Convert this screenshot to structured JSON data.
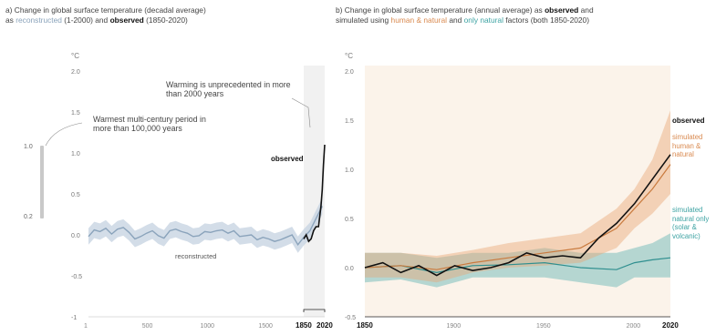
{
  "panel_a": {
    "title_line1": "a) Change in global surface temperature (decadal average)",
    "title_line2_prefix": "as ",
    "title_reconstructed": "reconstructed",
    "title_line2_mid": " (1-2000) and ",
    "title_observed": "observed",
    "title_line2_suffix": " (1850-2020)",
    "annotation_unprecedented": "Warming is unprecedented in more than 2000 years",
    "annotation_warmest": "Warmest multi-century period in more than 100,000 years",
    "label_observed": "observed",
    "label_reconstructed": "reconstructed",
    "side_bar_top": "1.0",
    "side_bar_bottom": "0.2"
  },
  "panel_b": {
    "title_line1_prefix": "b) Change in global surface temperature (annual average) as ",
    "title_observed": "observed",
    "title_line1_suffix": " and",
    "title_line2_prefix": "simulated using ",
    "title_human": "human & natural",
    "title_and": " and ",
    "title_natural": "only natural",
    "title_line2_suffix": " factors (both 1850-2020)",
    "label_observed": "observed",
    "label_human": "simulated human & natural",
    "label_natural": "simulated natural only (solar & volcanic)"
  },
  "colors": {
    "reconstructed": "#8aa3bb",
    "reconstructed_band": "#c8d5e2",
    "observed": "#111111",
    "human_natural": "#e9a878",
    "natural_only": "#5fb3b3"
  },
  "chart_data": [
    {
      "type": "line",
      "ylabel": "°C",
      "ylim": [
        -1,
        2
      ],
      "yticks": [
        "-1",
        "-0.5",
        "0.0",
        "0.5",
        "1.0",
        "1.5",
        "2.0"
      ],
      "xticks": [
        "1",
        "500",
        "1000",
        "1500",
        "1850",
        "2020"
      ],
      "xlim": [
        1,
        2020
      ],
      "grid": false,
      "series": [
        {
          "name": "reconstructed",
          "x": [
            1,
            50,
            100,
            150,
            200,
            250,
            300,
            350,
            400,
            450,
            500,
            550,
            600,
            650,
            700,
            750,
            800,
            850,
            900,
            950,
            1000,
            1050,
            1100,
            1150,
            1200,
            1250,
            1300,
            1350,
            1400,
            1450,
            1500,
            1550,
            1600,
            1650,
            1700,
            1750,
            1800,
            1850,
            1900,
            1950,
            2000
          ],
          "y": [
            -0.02,
            0.06,
            0.04,
            0.08,
            0.01,
            0.07,
            0.09,
            0.03,
            -0.05,
            -0.02,
            0.02,
            0.05,
            -0.01,
            -0.04,
            0.05,
            0.07,
            0.04,
            0.02,
            -0.02,
            -0.01,
            0.04,
            0.03,
            0.05,
            0.06,
            0.02,
            0.05,
            -0.02,
            -0.01,
            0.0,
            -0.06,
            -0.03,
            -0.05,
            -0.08,
            -0.06,
            -0.03,
            0.0,
            -0.12,
            -0.03,
            0.05,
            0.2,
            0.35
          ]
        },
        {
          "name": "observed",
          "x": [
            1850,
            1870,
            1890,
            1910,
            1930,
            1950,
            1970,
            1990,
            2000,
            2010,
            2020
          ],
          "y": [
            -0.05,
            0.0,
            -0.08,
            -0.05,
            0.05,
            0.1,
            0.1,
            0.35,
            0.55,
            0.85,
            1.1
          ]
        }
      ]
    },
    {
      "type": "line",
      "ylabel": "°C",
      "ylim": [
        -0.5,
        2
      ],
      "yticks": [
        "-0.5",
        "0.0",
        "0.5",
        "1.0",
        "1.5",
        "2.0"
      ],
      "xticks": [
        "1850",
        "1900",
        "1950",
        "2000",
        "2020"
      ],
      "xlim": [
        1850,
        2020
      ],
      "grid": false,
      "series": [
        {
          "name": "observed",
          "x": [
            1850,
            1860,
            1870,
            1880,
            1890,
            1900,
            1910,
            1920,
            1930,
            1940,
            1950,
            1960,
            1970,
            1980,
            1990,
            2000,
            2010,
            2020
          ],
          "y": [
            0.0,
            0.05,
            -0.05,
            0.02,
            -0.08,
            0.02,
            -0.03,
            0.0,
            0.05,
            0.15,
            0.1,
            0.12,
            0.1,
            0.3,
            0.45,
            0.65,
            0.9,
            1.15
          ]
        },
        {
          "name": "simulated human & natural",
          "x": [
            1850,
            1870,
            1890,
            1910,
            1930,
            1950,
            1970,
            1990,
            2000,
            2010,
            2020
          ],
          "y": [
            0.0,
            0.02,
            -0.02,
            0.05,
            0.1,
            0.15,
            0.2,
            0.4,
            0.6,
            0.8,
            1.05
          ],
          "lower": [
            -0.1,
            -0.1,
            -0.15,
            -0.05,
            0.0,
            0.02,
            0.05,
            0.2,
            0.4,
            0.55,
            0.75
          ],
          "upper": [
            0.15,
            0.15,
            0.12,
            0.18,
            0.25,
            0.3,
            0.35,
            0.6,
            0.8,
            1.1,
            1.6
          ]
        },
        {
          "name": "simulated natural only",
          "x": [
            1850,
            1870,
            1890,
            1910,
            1930,
            1950,
            1970,
            1990,
            2000,
            2010,
            2020
          ],
          "y": [
            0.0,
            0.02,
            -0.05,
            0.02,
            0.03,
            0.05,
            0.0,
            -0.02,
            0.05,
            0.08,
            0.1
          ],
          "lower": [
            -0.15,
            -0.12,
            -0.2,
            -0.1,
            -0.1,
            -0.1,
            -0.15,
            -0.2,
            -0.1,
            -0.1,
            -0.1
          ],
          "upper": [
            0.15,
            0.15,
            0.1,
            0.15,
            0.15,
            0.2,
            0.15,
            0.15,
            0.2,
            0.25,
            0.35
          ]
        }
      ]
    }
  ]
}
